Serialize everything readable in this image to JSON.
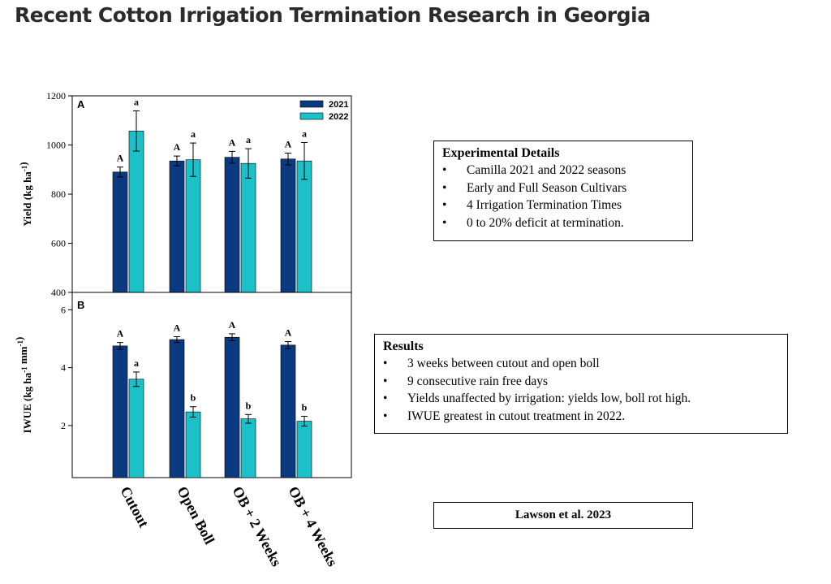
{
  "page": {
    "title": "Recent Cotton Irrigation Termination Research in Georgia"
  },
  "chart_data": [
    {
      "type": "bar",
      "panel": "A",
      "categories": [
        "Cutout",
        "Open Boll",
        "OB + 2 Weeks",
        "OB + 4 Weeks"
      ],
      "series": [
        {
          "name": "2021",
          "color": "#0c3a80",
          "values": [
            890,
            935,
            950,
            943
          ],
          "errors": [
            20,
            20,
            24,
            24
          ],
          "letters": [
            "A",
            "A",
            "A",
            "A"
          ]
        },
        {
          "name": "2022",
          "color": "#1cc0c8",
          "values": [
            1057,
            940,
            925,
            935
          ],
          "errors": [
            82,
            68,
            60,
            75
          ],
          "letters": [
            "a",
            "a",
            "a",
            "a"
          ]
        }
      ],
      "ylabel_main": "Yield (kg ha",
      "ylabel_sup": "-1",
      "ylabel_end": ")",
      "ylim": [
        400,
        1200
      ],
      "yticks": [
        400,
        600,
        800,
        1000,
        1200
      ],
      "legend": "top-right",
      "grid": false
    },
    {
      "type": "bar",
      "panel": "B",
      "categories": [
        "Cutout",
        "Open Boll",
        "OB + 2 Weeks",
        "OB + 4 Weeks"
      ],
      "series": [
        {
          "name": "2021",
          "color": "#0c3a80",
          "values": [
            4.75,
            4.97,
            5.05,
            4.78
          ],
          "errors": [
            0.12,
            0.1,
            0.12,
            0.12
          ],
          "letters": [
            "A",
            "A",
            "A",
            "A"
          ]
        },
        {
          "name": "2022",
          "color": "#1cc0c8",
          "values": [
            3.6,
            2.47,
            2.23,
            2.15
          ],
          "errors": [
            0.25,
            0.18,
            0.15,
            0.17
          ],
          "letters": [
            "a",
            "b",
            "b",
            "b"
          ]
        }
      ],
      "ylabel_main": "IWUE (kg ha",
      "ylabel_sup1": "-1",
      "ylabel_mid": " mm",
      "ylabel_sup2": "-1",
      "ylabel_end": ")",
      "ylim": [
        0.2,
        6.6
      ],
      "yticks": [
        2,
        4,
        6
      ],
      "grid": false
    }
  ],
  "details": {
    "title": "Experimental Details",
    "items": [
      "Camilla 2021 and 2022 seasons",
      "Early and Full Season Cultivars",
      "4 Irrigation Termination Times",
      "0 to 20% deficit at termination."
    ]
  },
  "results": {
    "title": "Results",
    "items": [
      "3 weeks between cutout and open boll",
      "9 consecutive rain free days",
      "Yields unaffected by irrigation: yields low, boll rot high.",
      "IWUE greatest in cutout treatment in 2022."
    ]
  },
  "citation": "Lawson  et al. 2023"
}
